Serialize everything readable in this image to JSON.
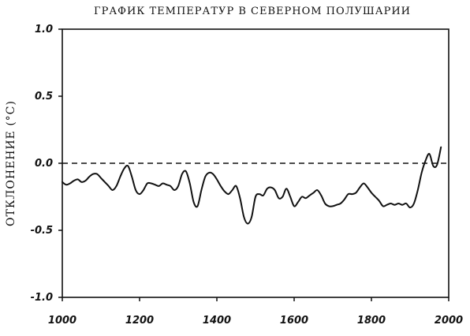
{
  "chart_data": {
    "type": "line",
    "title": "ГРАФИК ТЕМПЕРАТУР В СЕВЕРНОМ ПОЛУШАРИИ",
    "xlabel": "",
    "ylabel": "ОТКЛОНЕНИЕ (°C)",
    "xlim": [
      1000,
      2000
    ],
    "ylim": [
      -1.0,
      1.0
    ],
    "x_ticks": [
      1000,
      1200,
      1400,
      1600,
      1800,
      2000
    ],
    "y_ticks": [
      {
        "value": 1.0,
        "label": "1.0"
      },
      {
        "value": 0.5,
        "label": "0.5"
      },
      {
        "value": 0.0,
        "label": "0.0"
      },
      {
        "value": -0.5,
        "label": "-0.5"
      },
      {
        "value": -1.0,
        "label": "-1.0"
      }
    ],
    "reference_line": {
      "y": 0.0,
      "style": "dashed"
    },
    "grid": false,
    "line_color": "#111111",
    "series": [
      {
        "x": [
          1000,
          1010,
          1020,
          1030,
          1040,
          1050,
          1060,
          1070,
          1080,
          1090,
          1100,
          1110,
          1120,
          1130,
          1140,
          1150,
          1160,
          1170,
          1180,
          1190,
          1200,
          1210,
          1220,
          1230,
          1240,
          1250,
          1260,
          1270,
          1280,
          1290,
          1300,
          1310,
          1320,
          1330,
          1340,
          1350,
          1360,
          1370,
          1380,
          1390,
          1400,
          1410,
          1420,
          1430,
          1440,
          1450,
          1460,
          1470,
          1480,
          1490,
          1500,
          1510,
          1520,
          1530,
          1540,
          1550,
          1560,
          1570,
          1580,
          1590,
          1600,
          1610,
          1620,
          1630,
          1640,
          1650,
          1660,
          1670,
          1680,
          1690,
          1700,
          1710,
          1720,
          1730,
          1740,
          1750,
          1760,
          1770,
          1780,
          1790,
          1800,
          1810,
          1820,
          1830,
          1840,
          1850,
          1860,
          1870,
          1880,
          1890,
          1900,
          1910,
          1920,
          1930,
          1940,
          1950,
          1960,
          1970,
          1980
        ],
        "values": [
          -0.14,
          -0.16,
          -0.15,
          -0.13,
          -0.12,
          -0.14,
          -0.13,
          -0.1,
          -0.08,
          -0.08,
          -0.11,
          -0.14,
          -0.17,
          -0.2,
          -0.17,
          -0.1,
          -0.04,
          -0.02,
          -0.1,
          -0.2,
          -0.23,
          -0.2,
          -0.15,
          -0.15,
          -0.16,
          -0.17,
          -0.15,
          -0.16,
          -0.17,
          -0.2,
          -0.17,
          -0.08,
          -0.06,
          -0.15,
          -0.29,
          -0.32,
          -0.2,
          -0.1,
          -0.07,
          -0.08,
          -0.12,
          -0.17,
          -0.21,
          -0.23,
          -0.2,
          -0.17,
          -0.26,
          -0.4,
          -0.45,
          -0.4,
          -0.25,
          -0.23,
          -0.24,
          -0.19,
          -0.18,
          -0.2,
          -0.26,
          -0.25,
          -0.19,
          -0.25,
          -0.32,
          -0.29,
          -0.25,
          -0.26,
          -0.24,
          -0.22,
          -0.2,
          -0.24,
          -0.3,
          -0.32,
          -0.32,
          -0.31,
          -0.3,
          -0.27,
          -0.23,
          -0.23,
          -0.22,
          -0.18,
          -0.15,
          -0.18,
          -0.22,
          -0.25,
          -0.28,
          -0.32,
          -0.31,
          -0.3,
          -0.31,
          -0.3,
          -0.31,
          -0.3,
          -0.33,
          -0.3,
          -0.2,
          -0.07,
          0.02,
          0.07,
          -0.02,
          -0.01,
          0.12
        ]
      }
    ]
  }
}
